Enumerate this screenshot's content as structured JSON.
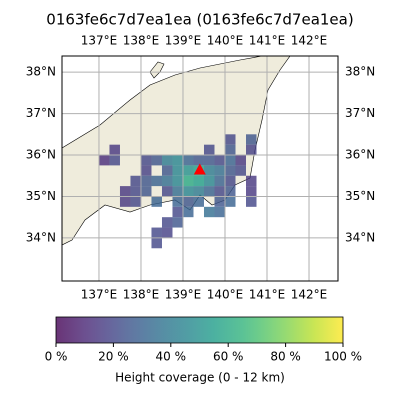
{
  "chart_data": {
    "type": "map-grid",
    "title": "0163fe6c7d7ea1ea (0163fe6c7d7ea1ea)",
    "xlim": [
      136.12,
      142.69
    ],
    "ylim": [
      32.96,
      38.39
    ],
    "xticks": [
      {
        "value": 137,
        "label": "137°E"
      },
      {
        "value": 138,
        "label": "138°E"
      },
      {
        "value": 139,
        "label": "139°E"
      },
      {
        "value": 140,
        "label": "140°E"
      },
      {
        "value": 141,
        "label": "141°E"
      },
      {
        "value": 142,
        "label": "142°E"
      }
    ],
    "yticks": [
      {
        "value": 34,
        "label": "34°N"
      },
      {
        "value": 35,
        "label": "35°N"
      },
      {
        "value": 36,
        "label": "36°N"
      },
      {
        "value": 37,
        "label": "37°N"
      },
      {
        "value": 38,
        "label": "38°N"
      }
    ],
    "grid": true,
    "cells": {
      "lon": [
        140.0,
        140.5,
        137.25,
        139.5,
        140.0,
        140.5,
        137.0,
        137.25,
        138.0,
        138.25,
        138.5,
        138.75,
        139.0,
        139.25,
        139.5,
        139.75,
        140.0,
        140.25,
        138.0,
        138.5,
        138.75,
        139.0,
        139.25,
        139.5,
        139.75,
        140.0,
        140.25,
        137.75,
        138.0,
        138.25,
        138.5,
        138.75,
        139.0,
        139.25,
        139.5,
        139.75,
        140.0,
        140.5,
        137.5,
        137.75,
        138.0,
        138.5,
        138.75,
        139.0,
        139.25,
        139.5,
        139.75,
        140.0,
        140.5,
        137.5,
        137.75,
        138.25,
        138.75,
        139.0,
        139.25,
        139.75,
        140.0,
        140.5,
        138.75,
        139.0,
        139.5,
        139.75,
        138.5,
        138.75,
        138.25,
        138.5,
        138.25
      ],
      "lat": [
        36.25,
        36.25,
        36.0,
        36.0,
        36.0,
        36.0,
        35.75,
        35.75,
        35.75,
        35.75,
        35.75,
        35.75,
        35.75,
        35.75,
        35.75,
        35.75,
        35.75,
        35.75,
        35.5,
        35.5,
        35.5,
        35.5,
        35.5,
        35.5,
        35.5,
        35.5,
        35.5,
        35.25,
        35.25,
        35.25,
        35.25,
        35.25,
        35.25,
        35.25,
        35.25,
        35.25,
        35.25,
        35.25,
        35.0,
        35.0,
        35.0,
        35.0,
        35.0,
        35.0,
        35.0,
        35.0,
        35.0,
        35.0,
        35.0,
        34.75,
        34.75,
        34.75,
        34.75,
        34.75,
        34.75,
        34.75,
        34.75,
        34.75,
        34.5,
        34.5,
        34.5,
        34.5,
        34.25,
        34.25,
        34.0,
        34.0,
        33.75
      ],
      "values": [
        20,
        25,
        15,
        20,
        25,
        18,
        12,
        20,
        20,
        25,
        40,
        45,
        30,
        25,
        25,
        20,
        30,
        15,
        18,
        25,
        45,
        50,
        55,
        40,
        35,
        25,
        20,
        20,
        25,
        30,
        35,
        45,
        60,
        55,
        45,
        30,
        20,
        15,
        15,
        20,
        25,
        20,
        35,
        45,
        40,
        30,
        20,
        25,
        15,
        15,
        20,
        30,
        30,
        25,
        30,
        25,
        30,
        20,
        20,
        30,
        35,
        30,
        20,
        25,
        20,
        18,
        20
      ]
    },
    "marker": {
      "lon": 139.4,
      "lat": 35.65,
      "color": "#ff0000"
    },
    "colorbar": {
      "label": "Height coverage (0 - 12 km)",
      "clim": [
        0,
        100
      ],
      "ticks": [
        {
          "value": 0,
          "label": "0 %"
        },
        {
          "value": 20,
          "label": "20 %"
        },
        {
          "value": 40,
          "label": "40 %"
        },
        {
          "value": 60,
          "label": "60 %"
        },
        {
          "value": 80,
          "label": "80 %"
        },
        {
          "value": 100,
          "label": "100 %"
        }
      ]
    }
  }
}
